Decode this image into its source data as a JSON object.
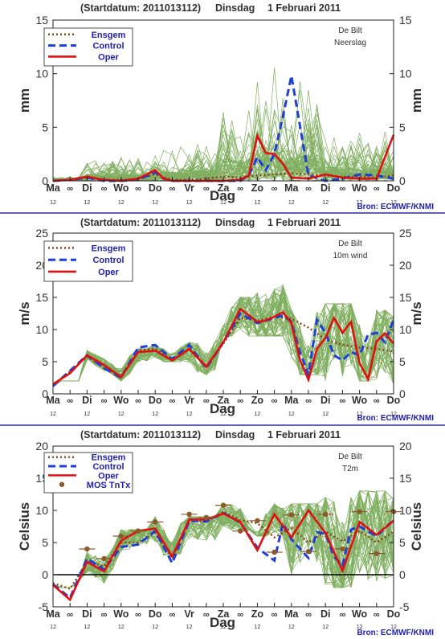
{
  "title_prefix": "(Startdatum: 2011013112)",
  "title_day": "Dinsdag",
  "title_date": "1 Februari 2011",
  "source": "Bron: ECMWF/KNMI",
  "x_axis_label": "Dag",
  "day_labels": [
    "Ma",
    "∞",
    "Di",
    "∞",
    "Wo",
    "∞",
    "Do",
    "∞",
    "Vr",
    "∞",
    "Za",
    "∞",
    "Zo",
    "∞",
    "Ma",
    "∞",
    "Di",
    "∞",
    "Wo",
    "∞",
    "Do"
  ],
  "hour_labels": [
    "12",
    "12",
    "12",
    "12",
    "12",
    "12",
    "12",
    "12",
    "12",
    "12",
    "12"
  ],
  "legend_entries": [
    "Ensgem",
    "Control",
    "Oper",
    "MOS TnTx"
  ],
  "colors": {
    "ensgem": "#8b4513",
    "control": "#1f3fd8",
    "oper": "#e01010",
    "members": "#7fae5f",
    "axis_text": "#303030",
    "legend_text": "#1f1fb0",
    "source_text": "#1f1fb0",
    "separator": "#2a2aa8",
    "mos": "#8b5a2b"
  },
  "chart_data": [
    {
      "type": "line",
      "station": "De Bilt",
      "variable": "Neerslag",
      "ylabel": "mm",
      "ylim": [
        0,
        15
      ],
      "yticks": [
        0,
        5,
        10,
        15
      ],
      "xlim": [
        0,
        10
      ],
      "legend_position": "top-left",
      "series": [
        {
          "name": "Ensgem",
          "style": "dotted",
          "x": [
            0,
            0.5,
            1,
            1.5,
            2,
            2.5,
            3,
            3.5,
            4,
            4.5,
            5,
            5.5,
            6,
            6.5,
            7,
            7.5,
            8,
            8.5,
            9,
            9.5,
            10
          ],
          "y": [
            0,
            0.1,
            0.3,
            0.1,
            0.1,
            0.2,
            0.6,
            0.1,
            0.1,
            0.2,
            0.4,
            0.3,
            0.5,
            0.6,
            0.7,
            0.6,
            0.5,
            0.4,
            0.4,
            0.3,
            0.5
          ]
        },
        {
          "name": "Control",
          "style": "dashed",
          "x": [
            0,
            0.5,
            1,
            1.5,
            2,
            2.5,
            3,
            3.25,
            3.5,
            4,
            4.5,
            5,
            5.5,
            5.75,
            6,
            6.25,
            6.5,
            6.75,
            7,
            7.5,
            8,
            8.5,
            9,
            9.5,
            10
          ],
          "y": [
            0,
            0.1,
            0.3,
            0,
            0,
            0.1,
            0.8,
            0.2,
            0,
            0,
            0,
            0,
            0,
            0.5,
            2.2,
            1.0,
            2.5,
            6.0,
            9.8,
            0.5,
            0,
            0.2,
            0.6,
            0.5,
            0.2
          ]
        },
        {
          "name": "Oper",
          "style": "solid",
          "x": [
            0,
            0.5,
            1,
            1.5,
            2,
            2.5,
            3,
            3.25,
            3.5,
            4,
            4.5,
            5,
            5.5,
            5.75,
            6,
            6.25,
            6.5,
            6.75,
            7,
            7.5,
            8,
            8.5,
            9,
            9.5,
            10
          ],
          "y": [
            0,
            0.1,
            0.4,
            0.1,
            0,
            0.2,
            1.0,
            0.2,
            0,
            0,
            0,
            0,
            0.1,
            0.5,
            4.2,
            2.6,
            2.5,
            1.6,
            0.3,
            0.2,
            0.6,
            0.3,
            0.2,
            0.2,
            4.3
          ]
        }
      ],
      "ensemble_members": {
        "count": 50,
        "range_by_day": [
          [
            0,
            0.5
          ],
          [
            0,
            2.5
          ],
          [
            0,
            2.5
          ],
          [
            0,
            3.5
          ],
          [
            0,
            4
          ],
          [
            0,
            8
          ],
          [
            0,
            11.5
          ],
          [
            0,
            10
          ],
          [
            0,
            5
          ],
          [
            0,
            5
          ],
          [
            0,
            3
          ]
        ]
      }
    },
    {
      "type": "line",
      "station": "De Bilt",
      "variable": "10m wind",
      "ylabel": "m/s",
      "ylim": [
        0,
        25
      ],
      "yticks": [
        0,
        5,
        10,
        15,
        20,
        25
      ],
      "xlim": [
        0,
        10
      ],
      "legend_position": "top-left",
      "series": [
        {
          "name": "Ensgem",
          "style": "dotted",
          "x": [
            0,
            0.5,
            1,
            1.5,
            2,
            2.5,
            3,
            3.5,
            4,
            4.5,
            5,
            5.5,
            6,
            6.5,
            7,
            7.5,
            8,
            8.5,
            9,
            9.5,
            10
          ],
          "y": [
            1.3,
            3.5,
            5.8,
            4.0,
            2.8,
            6.8,
            7.0,
            5.2,
            6.9,
            4.3,
            7.8,
            11.8,
            11.4,
            12.0,
            11.7,
            10.3,
            8.5,
            7.6,
            7.2,
            7.0,
            6.6
          ]
        },
        {
          "name": "Control",
          "style": "dashed",
          "x": [
            0,
            0.5,
            1,
            1.5,
            2,
            2.5,
            3,
            3.5,
            4,
            4.5,
            5,
            5.5,
            6,
            6.5,
            6.75,
            7,
            7.25,
            7.5,
            7.75,
            8,
            8.25,
            8.5,
            8.75,
            9,
            9.25,
            9.5,
            9.75,
            10
          ],
          "y": [
            1.2,
            3.6,
            6.0,
            4.0,
            2.5,
            7.2,
            7.6,
            5.4,
            7.6,
            4.0,
            8.0,
            12.5,
            11.0,
            11.8,
            12.2,
            11.2,
            6.5,
            3.0,
            11.5,
            9.5,
            6.0,
            5.2,
            6.5,
            6.0,
            9.2,
            9.5,
            8.0,
            11.5
          ]
        },
        {
          "name": "Oper",
          "style": "solid",
          "x": [
            0,
            0.5,
            1,
            1.5,
            2,
            2.5,
            3,
            3.5,
            4,
            4.5,
            5,
            5.5,
            6,
            6.25,
            6.5,
            6.75,
            7,
            7.25,
            7.5,
            7.75,
            8,
            8.25,
            8.5,
            8.75,
            9,
            9.25,
            9.5,
            9.75,
            10
          ],
          "y": [
            1.5,
            3.2,
            6.0,
            4.5,
            2.6,
            6.5,
            6.7,
            5.2,
            7.0,
            4.2,
            8.0,
            13.2,
            11.2,
            11.4,
            12.0,
            12.7,
            11.0,
            5.3,
            2.2,
            7.0,
            8.7,
            11.8,
            9.5,
            11.2,
            4.8,
            2.3,
            8.2,
            9.4,
            7.8
          ]
        }
      ],
      "ensemble_members": {
        "count": 50,
        "range_by_day": [
          [
            1,
            2
          ],
          [
            3,
            7
          ],
          [
            2,
            7
          ],
          [
            5,
            8
          ],
          [
            3,
            8
          ],
          [
            9,
            15
          ],
          [
            9,
            17
          ],
          [
            3,
            13
          ],
          [
            2,
            14
          ],
          [
            2,
            13
          ],
          [
            1,
            12
          ]
        ]
      }
    },
    {
      "type": "line",
      "station": "De Bilt",
      "variable": "T2m",
      "ylabel": "Celsius",
      "ylim": [
        -5,
        20
      ],
      "yticks": [
        -5,
        0,
        5,
        10,
        15,
        20
      ],
      "xlim": [
        0,
        10
      ],
      "zero_line": true,
      "legend_position": "top-left",
      "series": [
        {
          "name": "Ensgem",
          "style": "dotted",
          "x": [
            0,
            0.5,
            1,
            1.5,
            2,
            2.5,
            3,
            3.5,
            4,
            4.5,
            5,
            5.5,
            6,
            6.5,
            7,
            7.5,
            8,
            8.5,
            9,
            9.5,
            10
          ],
          "y": [
            -1.3,
            -2.2,
            2.0,
            1.3,
            5.0,
            5.0,
            6.5,
            2.5,
            8.5,
            8.2,
            9.8,
            8.5,
            8.0,
            5.8,
            7.3,
            5.0,
            6.7,
            5.2,
            6.8,
            5.0,
            6.7
          ]
        },
        {
          "name": "Control",
          "style": "dashed",
          "x": [
            0,
            0.5,
            1,
            1.5,
            2,
            2.5,
            3,
            3.5,
            4,
            4.5,
            5,
            5.5,
            6,
            6.5,
            6.75,
            7,
            7.5,
            7.75,
            8,
            8.25,
            8.5,
            8.75,
            9,
            9.5,
            10
          ],
          "y": [
            -1.5,
            -3.6,
            2.5,
            0.8,
            4.3,
            4.7,
            6.8,
            1.8,
            8.4,
            8.3,
            9.6,
            8.1,
            4.2,
            2.2,
            8.0,
            5.5,
            2.6,
            6.6,
            6.4,
            2.8,
            1.5,
            7.0,
            7.5,
            6.0,
            8.5
          ]
        },
        {
          "name": "Oper",
          "style": "solid",
          "x": [
            0,
            0.5,
            1,
            1.5,
            2,
            2.5,
            3,
            3.5,
            4,
            4.5,
            5,
            5.5,
            6,
            6.5,
            7,
            7.5,
            8,
            8.5,
            9,
            9.5,
            10
          ],
          "y": [
            -1.6,
            -3.9,
            2.0,
            0.5,
            5.3,
            6.8,
            7.2,
            2.8,
            8.6,
            8.6,
            9.5,
            8.2,
            3.8,
            9.4,
            5.8,
            10.0,
            6.5,
            0.6,
            8.2,
            6.2,
            8.4
          ]
        },
        {
          "name": "MOS TnTx",
          "style": "markers",
          "x": [
            1,
            1.5,
            2,
            2.5,
            3,
            4,
            4.5,
            5,
            5.5,
            6,
            6.5,
            7,
            7.5,
            8,
            8.5,
            9,
            9.5,
            10
          ],
          "y": [
            4.0,
            2.5,
            6.0,
            6.8,
            8.2,
            9.4,
            8.9,
            10.8,
            6.8,
            8.4,
            3.5,
            9.3,
            3.6,
            9.4,
            4.0,
            9.8,
            3.3,
            9.8
          ]
        }
      ],
      "ensemble_members": {
        "count": 50,
        "range_by_day": [
          [
            -2,
            -1
          ],
          [
            -4,
            4
          ],
          [
            0,
            7
          ],
          [
            3,
            9
          ],
          [
            1,
            9
          ],
          [
            7,
            11
          ],
          [
            6,
            11
          ],
          [
            0,
            11
          ],
          [
            -2,
            12
          ],
          [
            -1,
            13
          ],
          [
            -3,
            12
          ]
        ]
      }
    }
  ]
}
